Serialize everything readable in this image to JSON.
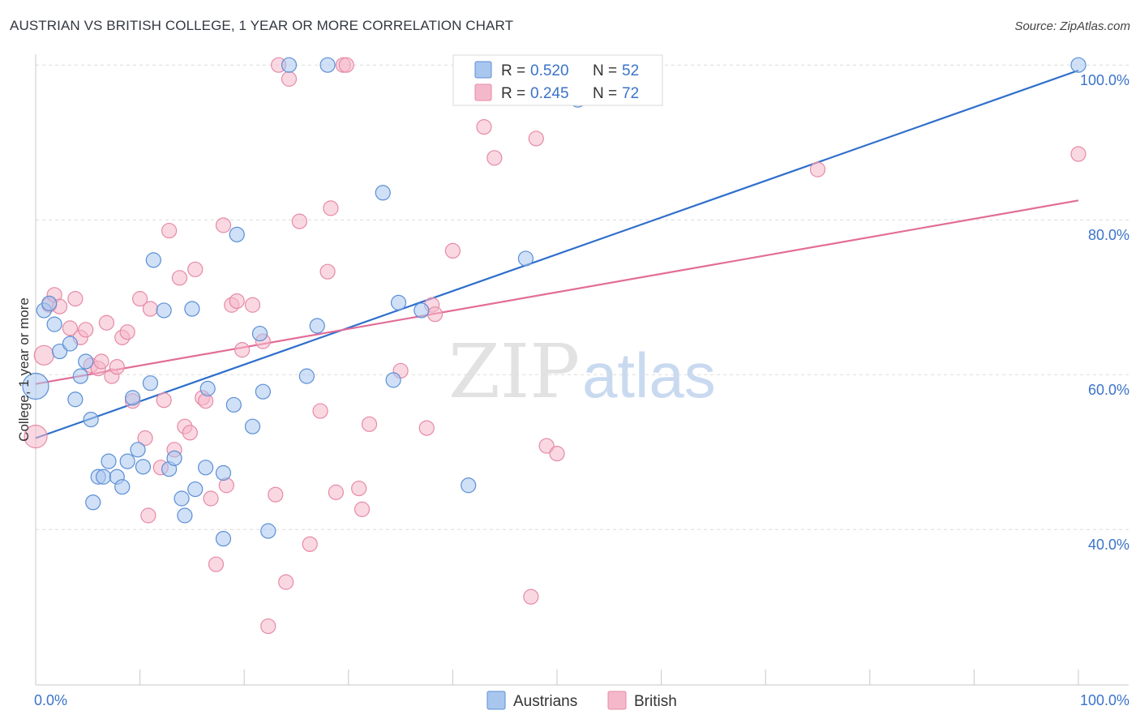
{
  "title": "AUSTRIAN VS BRITISH COLLEGE, 1 YEAR OR MORE CORRELATION CHART",
  "source": "Source: ZipAtlas.com",
  "watermark": {
    "zip": "ZIP",
    "atlas": "atlas"
  },
  "colors": {
    "austrians_fill": "#a9c6ee",
    "austrians_stroke": "#5b8fd6",
    "austrians_line": "#2f6fcb",
    "british_fill": "#f5b8cb",
    "british_stroke": "#e68aa7",
    "british_line": "#e26d97",
    "axis_text": "#3b73c9",
    "grid": "#dcdcdc"
  },
  "legend": {
    "rows": [
      {
        "r_label": "R = ",
        "r_value": "0.520",
        "n_label": "N = ",
        "n_value": "52"
      },
      {
        "r_label": "R = ",
        "r_value": "0.245",
        "n_label": "N = ",
        "n_value": "72"
      }
    ]
  },
  "bottom_legend": [
    "Austrians",
    "British"
  ],
  "chart_data": {
    "type": "scatter",
    "title": "AUSTRIAN VS BRITISH COLLEGE, 1 YEAR OR MORE CORRELATION CHART",
    "xlabel": "",
    "ylabel": "College, 1 year or more",
    "xlim": [
      0,
      100
    ],
    "ylim": [
      20,
      101
    ],
    "x_tick_labels": [
      "0.0%",
      "100.0%"
    ],
    "y_ticks": [
      40,
      60,
      80,
      100
    ],
    "y_tick_labels": [
      "40.0%",
      "60.0%",
      "80.0%",
      "100.0%"
    ],
    "grid": "horizontal dashed",
    "legend_position": "top-center",
    "series": [
      {
        "name": "Austrians",
        "r": 0.52,
        "n": 52,
        "trend": {
          "x": [
            0,
            100
          ],
          "y": [
            51.8,
            99.3
          ]
        },
        "points": [
          [
            0,
            58.5,
            16
          ],
          [
            0.8,
            68.3,
            9
          ],
          [
            1.3,
            69.2,
            9
          ],
          [
            1.8,
            66.5,
            9
          ],
          [
            2.3,
            63.0,
            9
          ],
          [
            3.3,
            64.0,
            9
          ],
          [
            3.8,
            56.8,
            9
          ],
          [
            4.3,
            59.8,
            9
          ],
          [
            4.8,
            61.7,
            9
          ],
          [
            5.3,
            54.2,
            9
          ],
          [
            5.5,
            43.5,
            9
          ],
          [
            6.0,
            46.8,
            9
          ],
          [
            6.5,
            46.8,
            9
          ],
          [
            7.0,
            48.8,
            9
          ],
          [
            7.8,
            46.8,
            9
          ],
          [
            8.3,
            45.5,
            9
          ],
          [
            8.8,
            48.8,
            9
          ],
          [
            9.3,
            57.0,
            9
          ],
          [
            9.8,
            50.3,
            9
          ],
          [
            10.3,
            48.1,
            9
          ],
          [
            11.0,
            58.9,
            9
          ],
          [
            11.3,
            74.8,
            9
          ],
          [
            12.3,
            68.3,
            9
          ],
          [
            12.8,
            47.8,
            9
          ],
          [
            13.3,
            49.2,
            9
          ],
          [
            14.0,
            44.0,
            9
          ],
          [
            14.3,
            41.8,
            9
          ],
          [
            15.0,
            68.5,
            9
          ],
          [
            15.3,
            45.2,
            9
          ],
          [
            16.3,
            48.0,
            9
          ],
          [
            16.5,
            58.2,
            9
          ],
          [
            18.0,
            47.3,
            9
          ],
          [
            18.0,
            38.8,
            9
          ],
          [
            19.0,
            56.1,
            9
          ],
          [
            19.3,
            78.1,
            9
          ],
          [
            20.8,
            53.3,
            9
          ],
          [
            21.5,
            65.3,
            9
          ],
          [
            21.8,
            57.8,
            9
          ],
          [
            22.3,
            39.8,
            9
          ],
          [
            24.3,
            100.0,
            9
          ],
          [
            26.0,
            59.8,
            9
          ],
          [
            27.0,
            66.3,
            9
          ],
          [
            28.0,
            100.0,
            9
          ],
          [
            33.3,
            83.5,
            9
          ],
          [
            34.3,
            59.3,
            9
          ],
          [
            34.8,
            69.3,
            9
          ],
          [
            37.0,
            68.3,
            9
          ],
          [
            41.5,
            45.7,
            9
          ],
          [
            47.0,
            75.0,
            9
          ],
          [
            52.0,
            95.5,
            9
          ],
          [
            100.0,
            100.0,
            9
          ]
        ]
      },
      {
        "name": "British",
        "r": 0.245,
        "n": 72,
        "trend": {
          "x": [
            0,
            100
          ],
          "y": [
            58.8,
            82.5
          ]
        },
        "points": [
          [
            0,
            52.0,
            14
          ],
          [
            0.8,
            62.5,
            12
          ],
          [
            1.3,
            69.0,
            9
          ],
          [
            1.8,
            70.3,
            9
          ],
          [
            2.3,
            68.8,
            9
          ],
          [
            3.3,
            66.0,
            9
          ],
          [
            3.8,
            69.8,
            9
          ],
          [
            4.3,
            64.8,
            9
          ],
          [
            4.8,
            65.8,
            9
          ],
          [
            5.3,
            61.2,
            9
          ],
          [
            6.0,
            60.8,
            9
          ],
          [
            6.3,
            61.7,
            9
          ],
          [
            6.8,
            66.7,
            9
          ],
          [
            7.3,
            59.8,
            9
          ],
          [
            7.8,
            61.0,
            9
          ],
          [
            8.3,
            64.8,
            9
          ],
          [
            8.8,
            65.5,
            9
          ],
          [
            9.3,
            56.6,
            9
          ],
          [
            10.0,
            69.8,
            9
          ],
          [
            10.5,
            51.8,
            9
          ],
          [
            10.8,
            41.8,
            9
          ],
          [
            11.0,
            68.5,
            9
          ],
          [
            12.0,
            48.0,
            9
          ],
          [
            12.3,
            56.7,
            9
          ],
          [
            12.8,
            78.6,
            9
          ],
          [
            13.3,
            50.3,
            9
          ],
          [
            13.8,
            72.5,
            9
          ],
          [
            14.3,
            53.3,
            9
          ],
          [
            14.8,
            52.5,
            9
          ],
          [
            15.3,
            73.6,
            9
          ],
          [
            16.0,
            57.0,
            9
          ],
          [
            16.3,
            56.6,
            9
          ],
          [
            16.8,
            44.0,
            9
          ],
          [
            17.3,
            35.5,
            9
          ],
          [
            18.0,
            79.3,
            9
          ],
          [
            18.3,
            45.7,
            9
          ],
          [
            18.8,
            69.0,
            9
          ],
          [
            19.3,
            69.5,
            9
          ],
          [
            19.8,
            63.2,
            9
          ],
          [
            20.8,
            69.0,
            9
          ],
          [
            21.8,
            64.3,
            9
          ],
          [
            22.3,
            27.5,
            9
          ],
          [
            23.0,
            44.5,
            9
          ],
          [
            23.3,
            100.0,
            9
          ],
          [
            24.0,
            33.2,
            9
          ],
          [
            24.3,
            98.2,
            9
          ],
          [
            25.3,
            79.8,
            9
          ],
          [
            26.3,
            38.1,
            9
          ],
          [
            27.3,
            55.3,
            9
          ],
          [
            28.0,
            73.3,
            9
          ],
          [
            28.3,
            81.5,
            9
          ],
          [
            28.8,
            44.8,
            9
          ],
          [
            29.5,
            100.0,
            9
          ],
          [
            29.8,
            100.0,
            9
          ],
          [
            31.0,
            45.3,
            9
          ],
          [
            31.3,
            42.6,
            9
          ],
          [
            32.0,
            53.6,
            9
          ],
          [
            35.0,
            60.5,
            9
          ],
          [
            37.5,
            53.1,
            9
          ],
          [
            38.0,
            69.0,
            9
          ],
          [
            38.3,
            67.8,
            9
          ],
          [
            40.0,
            76.0,
            9
          ],
          [
            43.0,
            92.0,
            9
          ],
          [
            44.0,
            88.0,
            9
          ],
          [
            47.5,
            31.3,
            9
          ],
          [
            48.0,
            90.5,
            9
          ],
          [
            49.0,
            50.8,
            9
          ],
          [
            50.0,
            49.8,
            9
          ],
          [
            52.0,
            100.0,
            9
          ],
          [
            75.0,
            86.5,
            9
          ],
          [
            100.0,
            88.5,
            9
          ]
        ]
      }
    ]
  }
}
